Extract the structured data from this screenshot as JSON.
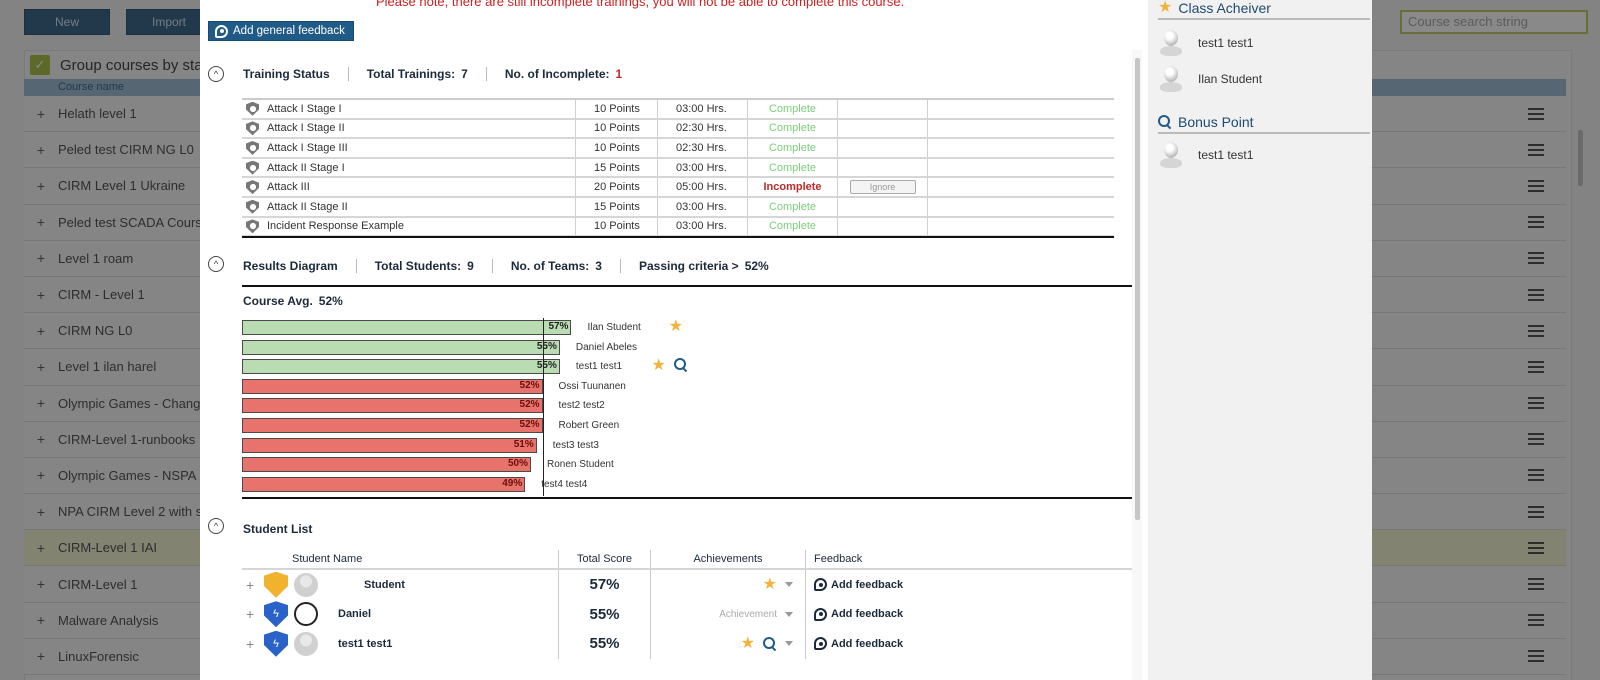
{
  "background": {
    "buttons": {
      "new": "New",
      "import": "Import"
    },
    "search_placeholder": "Course search string",
    "group_by_label": "Group courses by state",
    "column_header": "Course name",
    "courses": [
      {
        "name": "Helath level 1",
        "highlighted": false
      },
      {
        "name": "Peled test CIRM NG L0",
        "highlighted": false
      },
      {
        "name": "CIRM Level 1 Ukraine",
        "highlighted": false
      },
      {
        "name": "Peled test SCADA Course",
        "highlighted": false
      },
      {
        "name": "Level 1 roam",
        "highlighted": false
      },
      {
        "name": "CIRM - Level 1",
        "highlighted": false
      },
      {
        "name": "CIRM NG L0",
        "highlighted": false
      },
      {
        "name": "Level 1 ilan harel",
        "highlighted": false
      },
      {
        "name": "Olympic Games - Change",
        "highlighted": false
      },
      {
        "name": "CIRM-Level 1-runbooks",
        "highlighted": false
      },
      {
        "name": "Olympic Games - NSPA",
        "highlighted": false
      },
      {
        "name": "NPA CIRM Level 2 with s",
        "highlighted": false
      },
      {
        "name": "CIRM-Level 1 IAI",
        "highlighted": true
      },
      {
        "name": "CIRM-Level 1",
        "highlighted": false
      },
      {
        "name": "Malware Analysis",
        "highlighted": false
      },
      {
        "name": "LinuxForensic",
        "highlighted": false
      }
    ]
  },
  "modal": {
    "warning": "Please note, there are still incomplete trainings, you will not be able to complete this course.",
    "general_feedback_label": "Add general feedback",
    "training_status": {
      "title": "Training Status",
      "total_label": "Total Trainings:",
      "total_value": "7",
      "incomplete_label": "No. of Incomplete:",
      "incomplete_value": "1",
      "rows": [
        {
          "name": "Attack I Stage I",
          "points": "10  Points",
          "hours": "03:00  Hrs.",
          "status": "Complete",
          "ignore": ""
        },
        {
          "name": "Attack I Stage II",
          "points": "10  Points",
          "hours": "02:30  Hrs.",
          "status": "Complete",
          "ignore": ""
        },
        {
          "name": "Attack I Stage III",
          "points": "10  Points",
          "hours": "02:30  Hrs.",
          "status": "Complete",
          "ignore": ""
        },
        {
          "name": "Attack II Stage I",
          "points": "15  Points",
          "hours": "03:00  Hrs.",
          "status": "Complete",
          "ignore": ""
        },
        {
          "name": "Attack III",
          "points": "20  Points",
          "hours": "05:00  Hrs.",
          "status": "Incomplete",
          "ignore": "Ignore"
        },
        {
          "name": "Attack II Stage II",
          "points": "15  Points",
          "hours": "03:00  Hrs.",
          "status": "Complete",
          "ignore": ""
        },
        {
          "name": "Incident Response Example",
          "points": "10  Points",
          "hours": "03:00  Hrs.",
          "status": "Complete",
          "ignore": ""
        }
      ]
    },
    "results": {
      "title": "Results Diagram",
      "students_label": "Total Students:",
      "students_value": "9",
      "teams_label": "No. of Teams:",
      "teams_value": "3",
      "passing_label": "Passing criteria >",
      "passing_value": "52%",
      "avg_label": "Course Avg.",
      "avg_value": "52%"
    },
    "student_list": {
      "title": "Student List",
      "headers": {
        "name": "Student Name",
        "score": "Total Score",
        "achievements": "Achievements",
        "feedback": "Feedback"
      },
      "rows": [
        {
          "name": "Student",
          "score": "57%",
          "badge": "gold",
          "avatar": "default",
          "achievements": [
            "star"
          ],
          "achievement_placeholder": "",
          "feedback": "Add feedback"
        },
        {
          "name": "Daniel",
          "score": "55%",
          "badge": "blue",
          "avatar": "face",
          "achievements": [],
          "achievement_placeholder": "Achievement",
          "feedback": "Add feedback"
        },
        {
          "name": "test1 test1",
          "score": "55%",
          "badge": "blue",
          "avatar": "default",
          "achievements": [
            "star",
            "magnify"
          ],
          "achievement_placeholder": "",
          "feedback": "Add feedback"
        }
      ]
    }
  },
  "chart_data": {
    "type": "bar",
    "orientation": "horizontal",
    "title": "Course Avg. 52%",
    "xlabel": "",
    "ylabel": "",
    "xlim": [
      0,
      100
    ],
    "reference_line": {
      "label": "Passing criteria",
      "value": 52
    },
    "categories": [
      "Ilan Student",
      "Daniel Abeles",
      "test1 test1",
      "Ossi Tuunanen",
      "test2 test2",
      "Robert Green",
      "test3 test3",
      "Ronen Student",
      "test4 test4"
    ],
    "values": [
      57,
      55,
      55,
      52,
      52,
      52,
      51,
      50,
      49
    ],
    "labels": [
      "57%",
      "55%",
      "55%",
      "52%",
      "52%",
      "52%",
      "51%",
      "50%",
      "49%"
    ],
    "status": [
      "pass",
      "pass",
      "pass",
      "fail",
      "fail",
      "fail",
      "fail",
      "fail",
      "fail"
    ],
    "annotations": [
      [
        "star"
      ],
      [],
      [
        "star",
        "magnify"
      ],
      [],
      [],
      [],
      [],
      [],
      []
    ],
    "colors": {
      "pass": "#b9dcb3",
      "fail": "#e8726c"
    }
  },
  "side_panel": {
    "class_achiever": {
      "title": "Class Acheiver",
      "students": [
        "test1 test1",
        "Ilan Student"
      ]
    },
    "bonus_point": {
      "title": "Bonus Point",
      "students": [
        "test1 test1"
      ]
    }
  }
}
